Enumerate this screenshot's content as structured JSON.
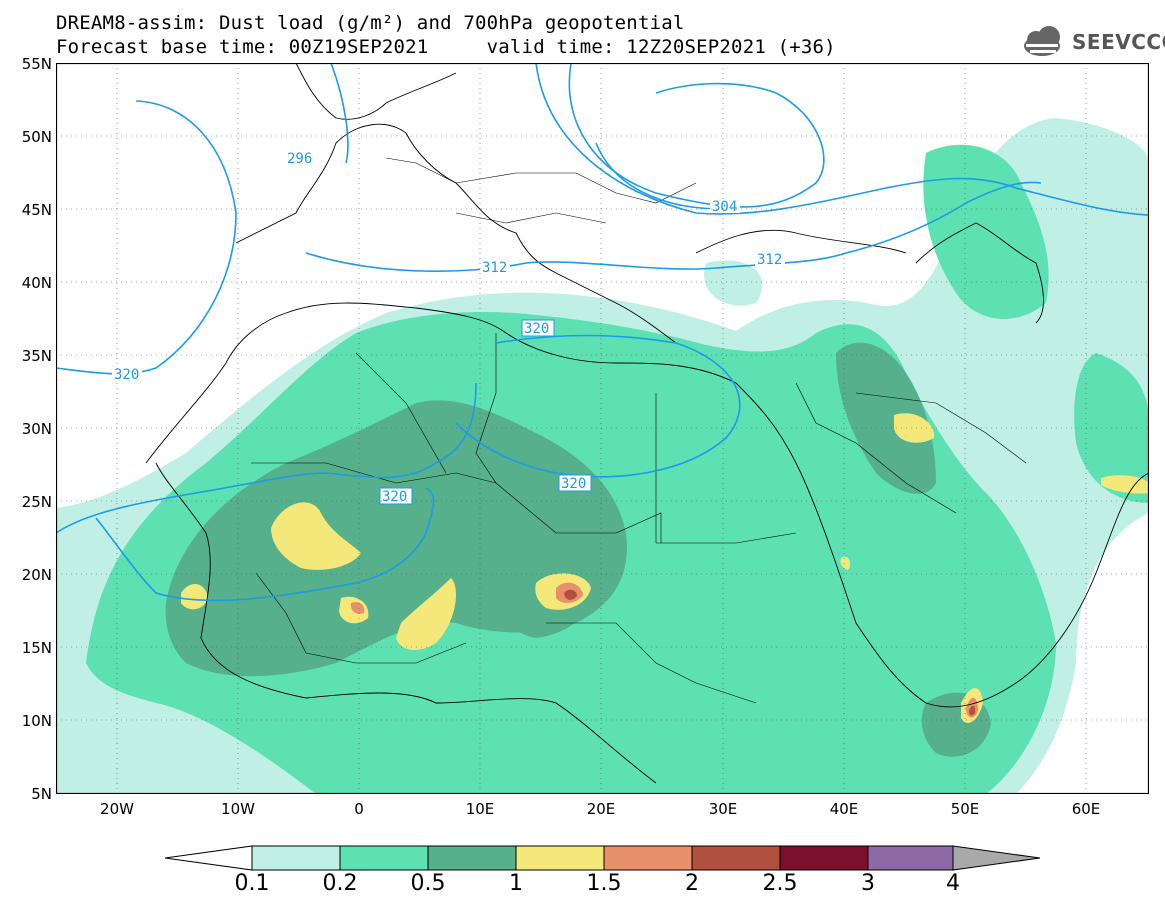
{
  "title": {
    "line1": "DREAM8-assim: Dust load (g/m²) and 700hPa geopotential",
    "line2": "Forecast base time: 00Z19SEP2021     valid time: 12Z20SEP2021 (+36)"
  },
  "logo": {
    "text": "SEEVCCC",
    "icon": "cloud-icon"
  },
  "axes": {
    "lat_labels": [
      "55N",
      "50N",
      "45N",
      "40N",
      "35N",
      "30N",
      "25N",
      "20N",
      "15N",
      "10N",
      "5N"
    ],
    "lon_labels": [
      "20W",
      "10W",
      "0",
      "10E",
      "20E",
      "30E",
      "40E",
      "50E",
      "60E"
    ]
  },
  "contours": {
    "color": "#1e9be6",
    "labels": [
      "296",
      "304",
      "312",
      "312",
      "320",
      "320",
      "320",
      "320"
    ]
  },
  "colorbar": {
    "labels": [
      "0.1",
      "0.2",
      "0.5",
      "1",
      "1.5",
      "2",
      "2.5",
      "3",
      "4"
    ],
    "colors": [
      "#c0efe5",
      "#5de0b2",
      "#55b08b",
      "#f4e87a",
      "#e8906a",
      "#b1503f",
      "#7c0f2a",
      "#8d6aa3"
    ],
    "under_color": "#ffffff",
    "over_color": "#a9a9a9"
  }
}
